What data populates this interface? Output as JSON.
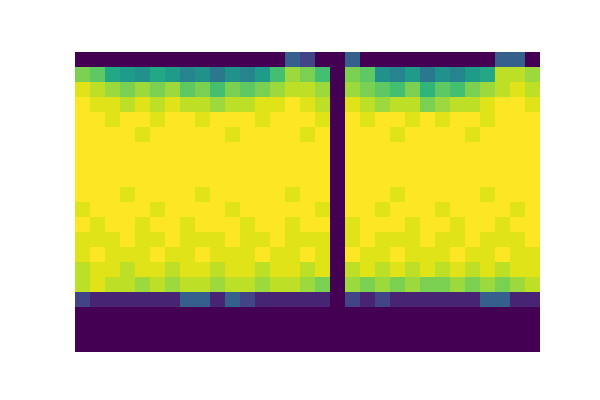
{
  "chart_data": {
    "type": "heatmap",
    "color": "viridis",
    "tick_labels": false,
    "color_range": [
      0,
      1
    ],
    "cells": [
      [
        0,
        0,
        0,
        0,
        0,
        0,
        0,
        0,
        0,
        0,
        0,
        0,
        0,
        0,
        0.3,
        0.2,
        0,
        0,
        0.3,
        0,
        0,
        0,
        0,
        0,
        0,
        0,
        0,
        0,
        0.3,
        0.3,
        0
      ],
      [
        0.8,
        0.75,
        0.6,
        0.55,
        0.5,
        0.6,
        0.55,
        0.45,
        0.5,
        0.4,
        0.5,
        0.45,
        0.55,
        0.7,
        0.85,
        0.8,
        0.7,
        0,
        0.8,
        0.75,
        0.5,
        0.45,
        0.55,
        0.4,
        0.5,
        0.45,
        0.55,
        0.6,
        0.9,
        0.9,
        0.85
      ],
      [
        0.95,
        0.9,
        0.85,
        0.8,
        0.85,
        0.8,
        0.85,
        0.75,
        0.8,
        0.7,
        0.8,
        0.75,
        0.8,
        0.85,
        0.9,
        0.9,
        0.85,
        0,
        0.85,
        0.8,
        0.75,
        0.7,
        0.8,
        0.65,
        0.75,
        0.7,
        0.8,
        0.85,
        0.9,
        0.95,
        0.9
      ],
      [
        1,
        0.95,
        0.95,
        0.9,
        0.95,
        0.9,
        0.95,
        0.9,
        0.9,
        0.85,
        0.9,
        0.9,
        0.95,
        0.95,
        1,
        0.95,
        0.9,
        0,
        0.95,
        0.9,
        0.85,
        0.9,
        0.9,
        0.8,
        0.85,
        0.9,
        0.9,
        0.95,
        1,
        1,
        0.95
      ],
      [
        1,
        1,
        0.95,
        1,
        1,
        0.95,
        1,
        1,
        0.95,
        1,
        1,
        1,
        0.95,
        1,
        1,
        1,
        0.95,
        0,
        1,
        0.95,
        1,
        1,
        0.95,
        1,
        0.95,
        1,
        1,
        0.95,
        1,
        1,
        1
      ],
      [
        1,
        1,
        1,
        1,
        0.95,
        1,
        1,
        1,
        1,
        1,
        0.95,
        1,
        1,
        1,
        1,
        0.95,
        1,
        0,
        1,
        1,
        1,
        0.95,
        1,
        1,
        1,
        1,
        0.95,
        1,
        1,
        1,
        1
      ],
      [
        1,
        1,
        1,
        1,
        1,
        1,
        1,
        1,
        1,
        1,
        1,
        1,
        1,
        1,
        1,
        1,
        1,
        0,
        1,
        1,
        1,
        1,
        1,
        1,
        1,
        1,
        1,
        1,
        1,
        1,
        1
      ],
      [
        1,
        1,
        1,
        1,
        1,
        1,
        1,
        1,
        1,
        1,
        1,
        1,
        1,
        1,
        1,
        1,
        1,
        0,
        1,
        1,
        1,
        1,
        1,
        1,
        1,
        1,
        1,
        1,
        1,
        1,
        1
      ],
      [
        1,
        1,
        1,
        1,
        1,
        1,
        1,
        1,
        1,
        1,
        1,
        1,
        1,
        1,
        1,
        1,
        1,
        0,
        1,
        1,
        1,
        1,
        1,
        1,
        1,
        1,
        1,
        1,
        1,
        1,
        1
      ],
      [
        1,
        1,
        1,
        0.95,
        1,
        1,
        1,
        1,
        0.95,
        1,
        1,
        1,
        1,
        1,
        0.95,
        1,
        1,
        0,
        1,
        1,
        1,
        0.95,
        1,
        1,
        1,
        1,
        1,
        0.95,
        1,
        1,
        1
      ],
      [
        0.95,
        1,
        1,
        1,
        1,
        0.95,
        1,
        1,
        1,
        1,
        0.95,
        1,
        1,
        1,
        1,
        1,
        0.95,
        0,
        1,
        1,
        0.95,
        1,
        1,
        1,
        0.95,
        1,
        1,
        1,
        1,
        0.95,
        1
      ],
      [
        1,
        0.95,
        1,
        1,
        0.95,
        1,
        1,
        0.95,
        1,
        1,
        1,
        0.95,
        1,
        1,
        0.95,
        1,
        1,
        0,
        0.95,
        1,
        1,
        1,
        0.95,
        1,
        1,
        0.95,
        1,
        1,
        0.95,
        1,
        1
      ],
      [
        0.95,
        0.95,
        0.95,
        1,
        0.95,
        0.95,
        1,
        0.95,
        0.95,
        0.95,
        1,
        0.95,
        0.95,
        1,
        0.95,
        0.95,
        0.95,
        0,
        0.95,
        1,
        0.95,
        0.95,
        0.95,
        1,
        0.95,
        0.95,
        1,
        0.95,
        0.95,
        0.95,
        1
      ],
      [
        0.95,
        1,
        0.95,
        0.95,
        0.95,
        1,
        0.95,
        0.95,
        1,
        0.95,
        0.95,
        0.95,
        1,
        0.95,
        0.95,
        1,
        0.95,
        0,
        1,
        0.95,
        0.95,
        1,
        0.95,
        0.95,
        0.95,
        1,
        0.95,
        0.95,
        1,
        0.95,
        0.95
      ],
      [
        0.9,
        0.95,
        0.95,
        0.9,
        0.95,
        0.95,
        0.9,
        0.95,
        0.95,
        0.9,
        0.95,
        0.95,
        0.9,
        0.95,
        0.95,
        0.9,
        0.95,
        0,
        0.9,
        0.95,
        0.9,
        0.95,
        0.9,
        0.95,
        0.9,
        0.95,
        0.9,
        0.95,
        0.9,
        0.95,
        0.95
      ],
      [
        0.9,
        0.95,
        0.9,
        0.9,
        0.85,
        0.9,
        0.85,
        0.9,
        0.9,
        0.85,
        0.9,
        0.9,
        0.85,
        0.9,
        0.9,
        0.85,
        0.8,
        0,
        0.85,
        0.8,
        0.85,
        0.8,
        0.85,
        0.8,
        0.8,
        0.85,
        0.8,
        0.85,
        0.8,
        0.85,
        0.9
      ],
      [
        0.2,
        0.1,
        0.1,
        0.1,
        0.1,
        0.1,
        0.1,
        0.3,
        0.3,
        0.1,
        0.3,
        0.2,
        0.1,
        0.1,
        0.1,
        0.1,
        0.1,
        0,
        0.2,
        0.1,
        0.2,
        0.1,
        0.1,
        0.1,
        0.1,
        0.1,
        0.1,
        0.3,
        0.3,
        0.1,
        0.1
      ],
      [
        0,
        0,
        0,
        0,
        0,
        0,
        0,
        0,
        0,
        0,
        0,
        0,
        0,
        0,
        0,
        0,
        0,
        0,
        0,
        0,
        0,
        0,
        0,
        0,
        0,
        0,
        0,
        0,
        0,
        0,
        0
      ],
      [
        0,
        0,
        0,
        0,
        0,
        0,
        0,
        0,
        0,
        0,
        0,
        0,
        0,
        0,
        0,
        0,
        0,
        0,
        0,
        0,
        0,
        0,
        0,
        0,
        0,
        0,
        0,
        0,
        0,
        0,
        0
      ],
      [
        0,
        0,
        0,
        0,
        0,
        0,
        0,
        0,
        0,
        0,
        0,
        0,
        0,
        0,
        0,
        0,
        0,
        0,
        0,
        0,
        0,
        0,
        0,
        0,
        0,
        0,
        0,
        0,
        0,
        0,
        0
      ]
    ]
  }
}
